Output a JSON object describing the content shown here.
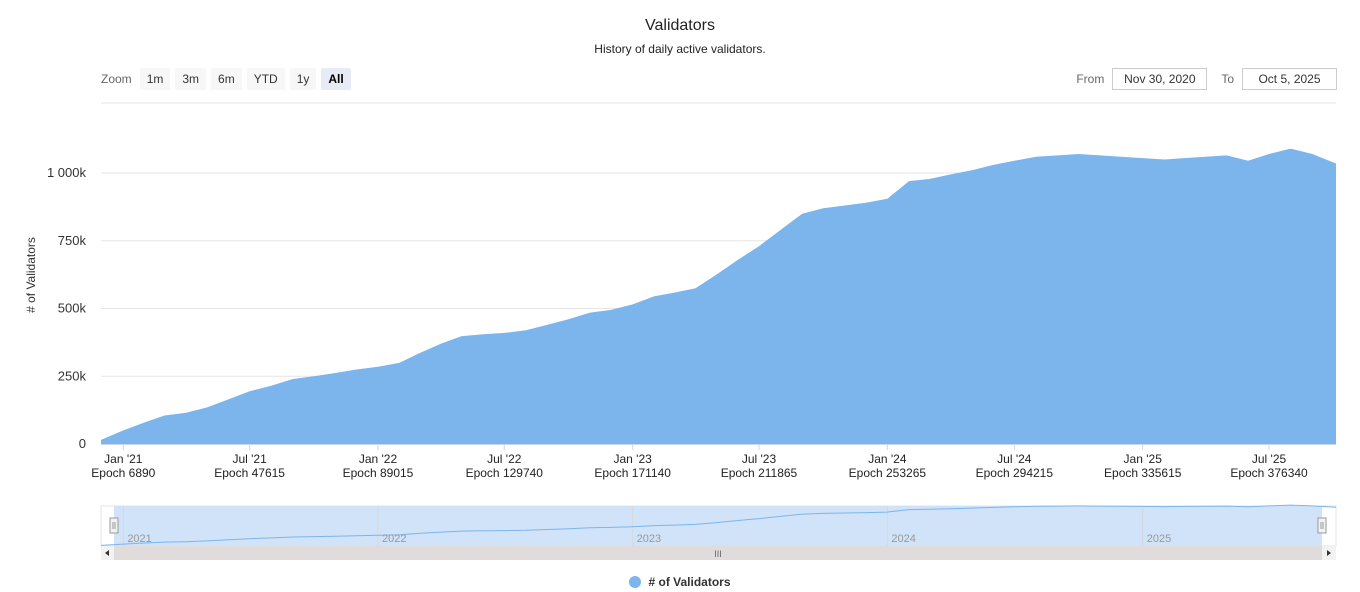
{
  "header": {
    "title": "Validators",
    "subtitle": "History of daily active validators."
  },
  "zoom": {
    "label": "Zoom",
    "buttons": [
      "1m",
      "3m",
      "6m",
      "YTD",
      "1y",
      "All"
    ],
    "active": "All"
  },
  "range": {
    "from_label": "From",
    "from_value": "Nov 30, 2020",
    "to_label": "To",
    "to_value": "Oct 5, 2025"
  },
  "navigator": {
    "year_labels": [
      "2021",
      "2022",
      "2023",
      "2024",
      "2025"
    ],
    "handle_glyph": "III"
  },
  "colors": {
    "series": "#7cb5ec",
    "navigator_fill": "#cce0f7",
    "scrollbar": "#e0dcdc"
  },
  "legend": {
    "label": "# of Validators"
  },
  "chart_data": {
    "type": "area",
    "title": "Validators",
    "subtitle": "History of daily active validators.",
    "ylabel": "# of Validators",
    "ylim": [
      0,
      1200000
    ],
    "yticks": [
      0,
      250000,
      500000,
      750000,
      1000000
    ],
    "ytick_labels": [
      "0",
      "250k",
      "500k",
      "750k",
      "1 000k"
    ],
    "xlim": [
      "2020-11-30",
      "2025-10-05"
    ],
    "xticks": [
      {
        "date": "2021-01-01",
        "label": "Jan '21",
        "epoch": "Epoch 6890"
      },
      {
        "date": "2021-07-01",
        "label": "Jul '21",
        "epoch": "Epoch 47615"
      },
      {
        "date": "2022-01-01",
        "label": "Jan '22",
        "epoch": "Epoch 89015"
      },
      {
        "date": "2022-07-01",
        "label": "Jul '22",
        "epoch": "Epoch 129740"
      },
      {
        "date": "2023-01-01",
        "label": "Jan '23",
        "epoch": "Epoch 171140"
      },
      {
        "date": "2023-07-01",
        "label": "Jul '23",
        "epoch": "Epoch 211865"
      },
      {
        "date": "2024-01-01",
        "label": "Jan '24",
        "epoch": "Epoch 253265"
      },
      {
        "date": "2024-07-01",
        "label": "Jul '24",
        "epoch": "Epoch 294215"
      },
      {
        "date": "2025-01-01",
        "label": "Jan '25",
        "epoch": "Epoch 335615"
      },
      {
        "date": "2025-07-01",
        "label": "Jul '25",
        "epoch": "Epoch 376340"
      }
    ],
    "grid": true,
    "legend": "bottom",
    "series": [
      {
        "name": "# of Validators",
        "x": [
          "2020-11-30",
          "2021-01-01",
          "2021-02-01",
          "2021-03-01",
          "2021-04-01",
          "2021-05-01",
          "2021-06-01",
          "2021-07-01",
          "2021-08-01",
          "2021-09-01",
          "2021-10-01",
          "2021-11-01",
          "2021-12-01",
          "2022-01-01",
          "2022-02-01",
          "2022-03-01",
          "2022-04-01",
          "2022-05-01",
          "2022-06-01",
          "2022-07-01",
          "2022-08-01",
          "2022-09-01",
          "2022-10-01",
          "2022-11-01",
          "2022-12-01",
          "2023-01-01",
          "2023-02-01",
          "2023-03-01",
          "2023-04-01",
          "2023-05-01",
          "2023-06-01",
          "2023-07-01",
          "2023-08-01",
          "2023-09-01",
          "2023-10-01",
          "2023-11-01",
          "2023-12-01",
          "2024-01-01",
          "2024-02-01",
          "2024-03-01",
          "2024-04-01",
          "2024-05-01",
          "2024-06-01",
          "2024-07-01",
          "2024-08-01",
          "2024-09-01",
          "2024-10-01",
          "2024-11-01",
          "2024-12-01",
          "2025-01-01",
          "2025-02-01",
          "2025-03-01",
          "2025-04-01",
          "2025-05-01",
          "2025-06-01",
          "2025-07-01",
          "2025-08-01",
          "2025-09-01",
          "2025-10-05"
        ],
        "y": [
          15000,
          50000,
          80000,
          105000,
          115000,
          135000,
          165000,
          195000,
          215000,
          240000,
          250000,
          262000,
          275000,
          285000,
          300000,
          335000,
          370000,
          398000,
          405000,
          410000,
          420000,
          440000,
          460000,
          485000,
          495000,
          515000,
          545000,
          558000,
          575000,
          625000,
          680000,
          730000,
          790000,
          850000,
          870000,
          880000,
          890000,
          905000,
          970000,
          978000,
          995000,
          1010000,
          1030000,
          1045000,
          1060000,
          1065000,
          1070000,
          1065000,
          1060000,
          1055000,
          1050000,
          1055000,
          1060000,
          1065000,
          1045000,
          1070000,
          1090000,
          1070000,
          1035000
        ]
      }
    ]
  }
}
